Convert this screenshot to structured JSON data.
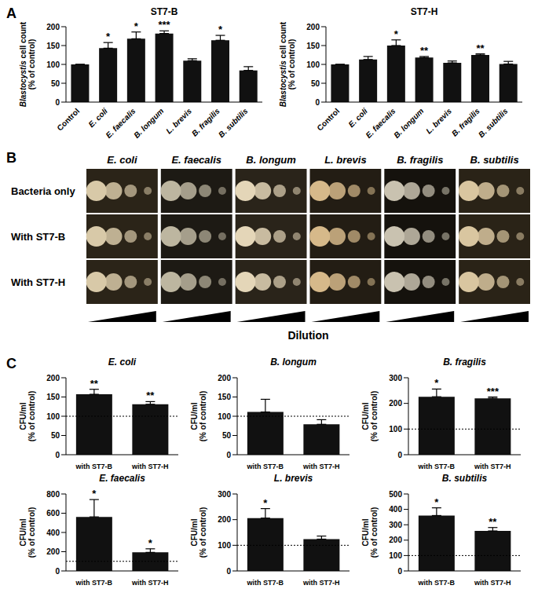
{
  "panel_labels": [
    "A",
    "B",
    "C"
  ],
  "chart_data": [
    {
      "type": "bar",
      "title": "ST7-B",
      "categories": [
        "Control",
        "E. coli",
        "E. faecalis",
        "B. longum",
        "L. brevis",
        "B. fragilis",
        "B. subtilis"
      ],
      "values": [
        100,
        143,
        168,
        182,
        110,
        164,
        84
      ],
      "errors": [
        0,
        15,
        18,
        7,
        5,
        13,
        10
      ],
      "significance": [
        "",
        "*",
        "*",
        "***",
        "",
        "*",
        ""
      ],
      "ylim": [
        0,
        200
      ],
      "yticks": [
        0,
        50,
        100,
        150,
        200
      ],
      "y_label": "Blastocystis cell count (% of control)",
      "color": "#111111"
    },
    {
      "type": "bar",
      "title": "ST7-H",
      "categories": [
        "Control",
        "E. coli",
        "E. faecalis",
        "B. longum",
        "L. brevis",
        "B. fragilis",
        "B. subtilis"
      ],
      "values": [
        100,
        113,
        150,
        118,
        104,
        125,
        101
      ],
      "errors": [
        0,
        8,
        15,
        3,
        5,
        3,
        7
      ],
      "significance": [
        "",
        "",
        "*",
        "**",
        "",
        "**",
        ""
      ],
      "ylim": [
        0,
        200
      ],
      "yticks": [
        0,
        50,
        100,
        150,
        200
      ],
      "y_label": "Blastocystis cell count (% of control)",
      "color": "#111111"
    },
    {
      "type": "bar",
      "title": "E. coli",
      "categories": [
        "with ST7-B",
        "with ST7-H"
      ],
      "values": [
        157,
        131
      ],
      "errors": [
        13,
        7
      ],
      "significance": [
        "**",
        "**"
      ],
      "reference_line": 100,
      "ylim": [
        0,
        200
      ],
      "yticks": [
        0,
        50,
        100,
        150,
        200
      ],
      "y_label": "CFU/ml (% of control)",
      "color": "#111111"
    },
    {
      "type": "bar",
      "title": "B. longum",
      "categories": [
        "with ST7-B",
        "with ST7-H"
      ],
      "values": [
        111,
        79
      ],
      "errors": [
        33,
        12
      ],
      "significance": [
        "",
        ""
      ],
      "reference_line": 100,
      "ylim": [
        0,
        200
      ],
      "yticks": [
        0,
        50,
        100,
        150,
        200
      ],
      "y_label": "CFU/ml (% of control)",
      "color": "#111111"
    },
    {
      "type": "bar",
      "title": "B. fragilis",
      "categories": [
        "with ST7-B",
        "with ST7-H"
      ],
      "values": [
        226,
        220
      ],
      "errors": [
        30,
        5
      ],
      "significance": [
        "*",
        "***"
      ],
      "reference_line": 100,
      "ylim": [
        0,
        300
      ],
      "yticks": [
        0,
        100,
        200,
        300
      ],
      "y_label": "CFU/ml (% of control)",
      "color": "#111111"
    },
    {
      "type": "bar",
      "title": "E. faecalis",
      "categories": [
        "with ST7-B",
        "with ST7-H"
      ],
      "values": [
        562,
        193
      ],
      "errors": [
        180,
        37
      ],
      "significance": [
        "*",
        "*"
      ],
      "reference_line": 100,
      "ylim": [
        0,
        800
      ],
      "yticks": [
        0,
        200,
        400,
        600,
        800
      ],
      "y_label": "CFU/ml (% of control)",
      "color": "#111111"
    },
    {
      "type": "bar",
      "title": "L. brevis",
      "categories": [
        "with ST7-B",
        "with ST7-H"
      ],
      "values": [
        206,
        124
      ],
      "errors": [
        37,
        12
      ],
      "significance": [
        "*",
        ""
      ],
      "reference_line": 100,
      "ylim": [
        0,
        300
      ],
      "yticks": [
        0,
        100,
        200,
        300
      ],
      "y_label": "CFU/ml (% of control)",
      "color": "#111111"
    },
    {
      "type": "bar",
      "title": "B. subtilis",
      "categories": [
        "with ST7-B",
        "with ST7-H"
      ],
      "values": [
        360,
        260
      ],
      "errors": [
        50,
        22
      ],
      "significance": [
        "*",
        "**"
      ],
      "reference_line": 100,
      "ylim": [
        0,
        500
      ],
      "yticks": [
        0,
        100,
        200,
        300,
        400,
        500
      ],
      "y_label": "CFU/ml (% of control)",
      "color": "#111111"
    }
  ],
  "spot_assay": {
    "columns": [
      "E. coli",
      "E. faecalis",
      "B. longum",
      "L. brevis",
      "B. fragilis",
      "B. subtilis"
    ],
    "rows": [
      "Bacteria only",
      "With ST7-B",
      "With ST7-H"
    ],
    "axis_label": "Dilution"
  }
}
